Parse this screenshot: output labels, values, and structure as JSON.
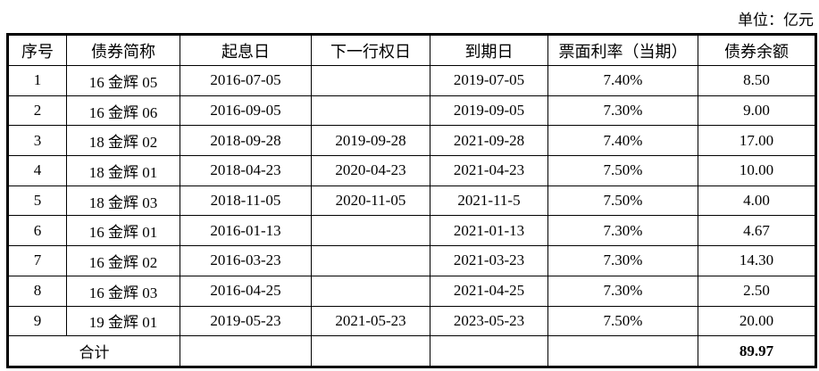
{
  "unit_label": "单位：亿元",
  "headers": [
    "序号",
    "债券简称",
    "起息日",
    "下一行权日",
    "到期日",
    "票面利率（当期）",
    "债券余额"
  ],
  "rows": [
    [
      "1",
      "16 金辉 05",
      "2016-07-05",
      "",
      "2019-07-05",
      "7.40%",
      "8.50"
    ],
    [
      "2",
      "16 金辉 06",
      "2016-09-05",
      "",
      "2019-09-05",
      "7.30%",
      "9.00"
    ],
    [
      "3",
      "18 金辉 02",
      "2018-09-28",
      "2019-09-28",
      "2021-09-28",
      "7.40%",
      "17.00"
    ],
    [
      "4",
      "18 金辉 01",
      "2018-04-23",
      "2020-04-23",
      "2021-04-23",
      "7.50%",
      "10.00"
    ],
    [
      "5",
      "18 金辉 03",
      "2018-11-05",
      "2020-11-05",
      "2021-11-5",
      "7.50%",
      "4.00"
    ],
    [
      "6",
      "16 金辉 01",
      "2016-01-13",
      "",
      "2021-01-13",
      "7.30%",
      "4.67"
    ],
    [
      "7",
      "16 金辉 02",
      "2016-03-23",
      "",
      "2021-03-23",
      "7.30%",
      "14.30"
    ],
    [
      "8",
      "16 金辉 03",
      "2016-04-25",
      "",
      "2021-04-25",
      "7.30%",
      "2.50"
    ],
    [
      "9",
      "19 金辉 01",
      "2019-05-23",
      "2021-05-23",
      "2023-05-23",
      "7.50%",
      "20.00"
    ]
  ],
  "total": {
    "label": "合计",
    "value": "89.97"
  }
}
